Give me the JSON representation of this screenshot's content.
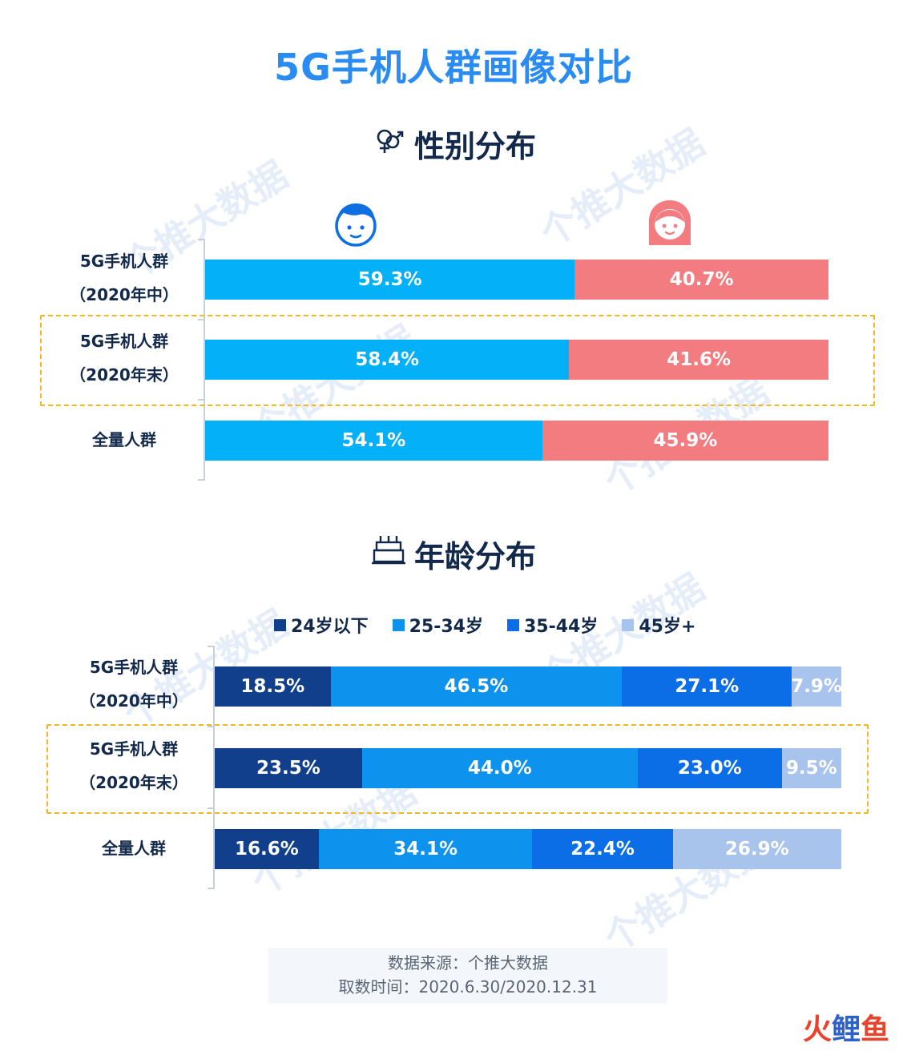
{
  "title": "5G手机人群画像对比",
  "gender_section": {
    "title": "性别分布",
    "icon": "gender-symbol-icon",
    "male_icon": "boy-face-icon",
    "female_icon": "girl-face-icon",
    "rows": [
      {
        "label_line1": "5G手机人群",
        "label_line2": "（2020年中）"
      },
      {
        "label_line1": "5G手机人群",
        "label_line2": "（2020年末）"
      },
      {
        "label_line1": "全量人群",
        "label_line2": ""
      }
    ]
  },
  "age_section": {
    "title": "年龄分布",
    "icon": "birthday-cake-icon",
    "rows": [
      {
        "label_line1": "5G手机人群",
        "label_line2": "（2020年中）"
      },
      {
        "label_line1": "5G手机人群",
        "label_line2": "（2020年末）"
      },
      {
        "label_line1": "全量人群",
        "label_line2": ""
      }
    ]
  },
  "chart_data": [
    {
      "type": "bar",
      "orientation": "horizontal-stacked-100",
      "title": "性别分布",
      "categories": [
        "5G手机人群（2020年中）",
        "5G手机人群（2020年末）",
        "全量人群"
      ],
      "series": [
        {
          "name": "男",
          "color": "#04b0f7",
          "values": [
            59.3,
            58.4,
            54.1
          ],
          "labels": [
            "59.3%",
            "58.4%",
            "54.1%"
          ]
        },
        {
          "name": "女",
          "color": "#f27c80",
          "values": [
            40.7,
            41.6,
            45.9
          ],
          "labels": [
            "40.7%",
            "41.6%",
            "45.9%"
          ]
        }
      ],
      "legend": "icons-top",
      "highlighted_category": "5G手机人群（2020年末）"
    },
    {
      "type": "bar",
      "orientation": "horizontal-stacked-100",
      "title": "年龄分布",
      "categories": [
        "5G手机人群（2020年中）",
        "5G手机人群（2020年末）",
        "全量人群"
      ],
      "series": [
        {
          "name": "24岁以下",
          "color": "#123f8c",
          "values": [
            18.5,
            23.5,
            16.6
          ],
          "labels": [
            "18.5%",
            "23.5%",
            "16.6%"
          ]
        },
        {
          "name": "25-34岁",
          "color": "#0d92ee",
          "values": [
            46.5,
            44.0,
            34.1
          ],
          "labels": [
            "46.5%",
            "44.0%",
            "34.1%"
          ]
        },
        {
          "name": "35-44岁",
          "color": "#0b6ee6",
          "values": [
            27.1,
            23.0,
            22.4
          ],
          "labels": [
            "27.1%",
            "23.0%",
            "22.4%"
          ]
        },
        {
          "name": "45岁+",
          "color": "#a8c3ec",
          "values": [
            7.9,
            9.5,
            26.9
          ],
          "labels": [
            "7.9%",
            "9.5%",
            "26.9%"
          ]
        }
      ],
      "legend": "top",
      "highlighted_category": "5G手机人群（2020年末）"
    }
  ],
  "source": {
    "line1": "数据来源：个推大数据",
    "line2": "取数时间：2020.6.30/2020.12.31"
  },
  "watermark": "个推大数据",
  "brand": {
    "char1": "火",
    "char2": "鲤",
    "char3": "鱼"
  }
}
